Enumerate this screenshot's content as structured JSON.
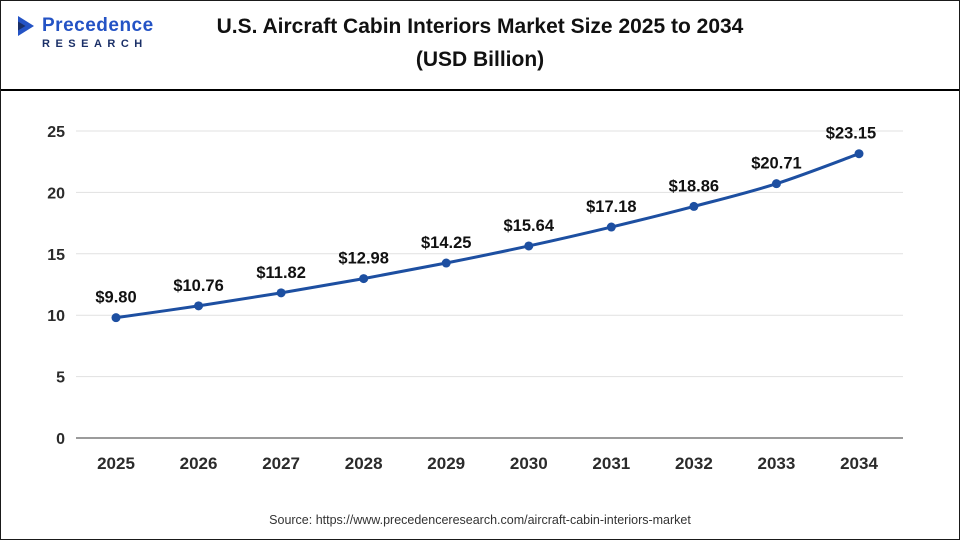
{
  "header": {
    "title_line1": "U.S. Aircraft Cabin Interiors Market Size 2025 to 2034",
    "title_line2": "(USD Billion)",
    "logo": {
      "line1": "Precedence",
      "line2": "RESEARCH"
    }
  },
  "chart_data": {
    "type": "line",
    "title": "U.S. Aircraft Cabin Interiors Market Size 2025 to 2034 (USD Billion)",
    "categories": [
      "2025",
      "2026",
      "2027",
      "2028",
      "2029",
      "2030",
      "2031",
      "2032",
      "2033",
      "2034"
    ],
    "values": [
      9.8,
      10.76,
      11.82,
      12.98,
      14.25,
      15.64,
      17.18,
      18.86,
      20.71,
      23.15
    ],
    "point_labels": [
      "$9.80",
      "$10.76",
      "$11.82",
      "$12.98",
      "$14.25",
      "$15.64",
      "$17.18",
      "$18.86",
      "$20.71",
      "$23.15"
    ],
    "xlabel": "",
    "ylabel": "",
    "ylim": [
      0,
      25
    ],
    "yticks": [
      0,
      5,
      10,
      15,
      20,
      25
    ],
    "grid": true,
    "legend_position": "none",
    "line_color": "#1d4fa1",
    "marker_color": "#1d4fa1"
  },
  "footer": {
    "source": "Source: https://www.precedenceresearch.com/aircraft-cabin-interiors-market"
  },
  "colors": {
    "logo_blue": "#2453c5",
    "logo_navy": "#1a2f67",
    "accent": "#1d4fa1"
  }
}
